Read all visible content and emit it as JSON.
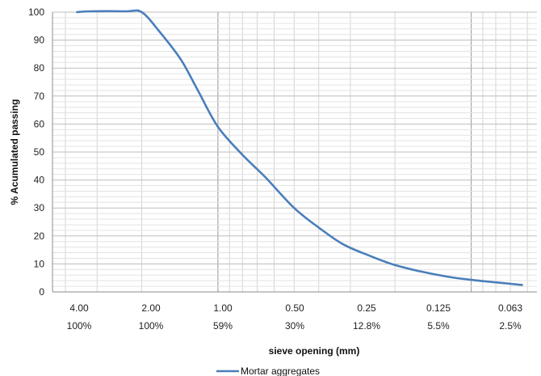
{
  "chart_data": {
    "type": "line",
    "xlabel": "sieve opening (mm)",
    "ylabel": "% Acumulated passing",
    "x_scale": "log",
    "x_reversed": true,
    "ylim": [
      0,
      100
    ],
    "yticks": [
      0,
      10,
      20,
      30,
      40,
      50,
      60,
      70,
      80,
      90,
      100
    ],
    "grid": true,
    "legend_position": "bottom",
    "categories": [
      "4.00",
      "2.00",
      "1.00",
      "0.50",
      "0.25",
      "0.125",
      "0.063"
    ],
    "passing_labels": [
      "100%",
      "100%",
      "59%",
      "30%",
      "12.8%",
      "5.5%",
      "2.5%"
    ],
    "series": [
      {
        "name": "Mortar aggregates",
        "color": "#4a7ebb",
        "x": [
          3.6,
          3.2,
          2.3,
          2.0,
          1.7,
          1.4,
          1.2,
          1.0,
          0.8,
          0.65,
          0.5,
          0.4,
          0.32,
          0.25,
          0.2,
          0.16,
          0.125,
          0.1,
          0.08,
          0.063
        ],
        "y": [
          100,
          100.3,
          100.3,
          100,
          93,
          83,
          72,
          59,
          49,
          41,
          30,
          23,
          17,
          12.8,
          9.6,
          7.4,
          5.5,
          4.3,
          3.4,
          2.5
        ]
      }
    ]
  }
}
